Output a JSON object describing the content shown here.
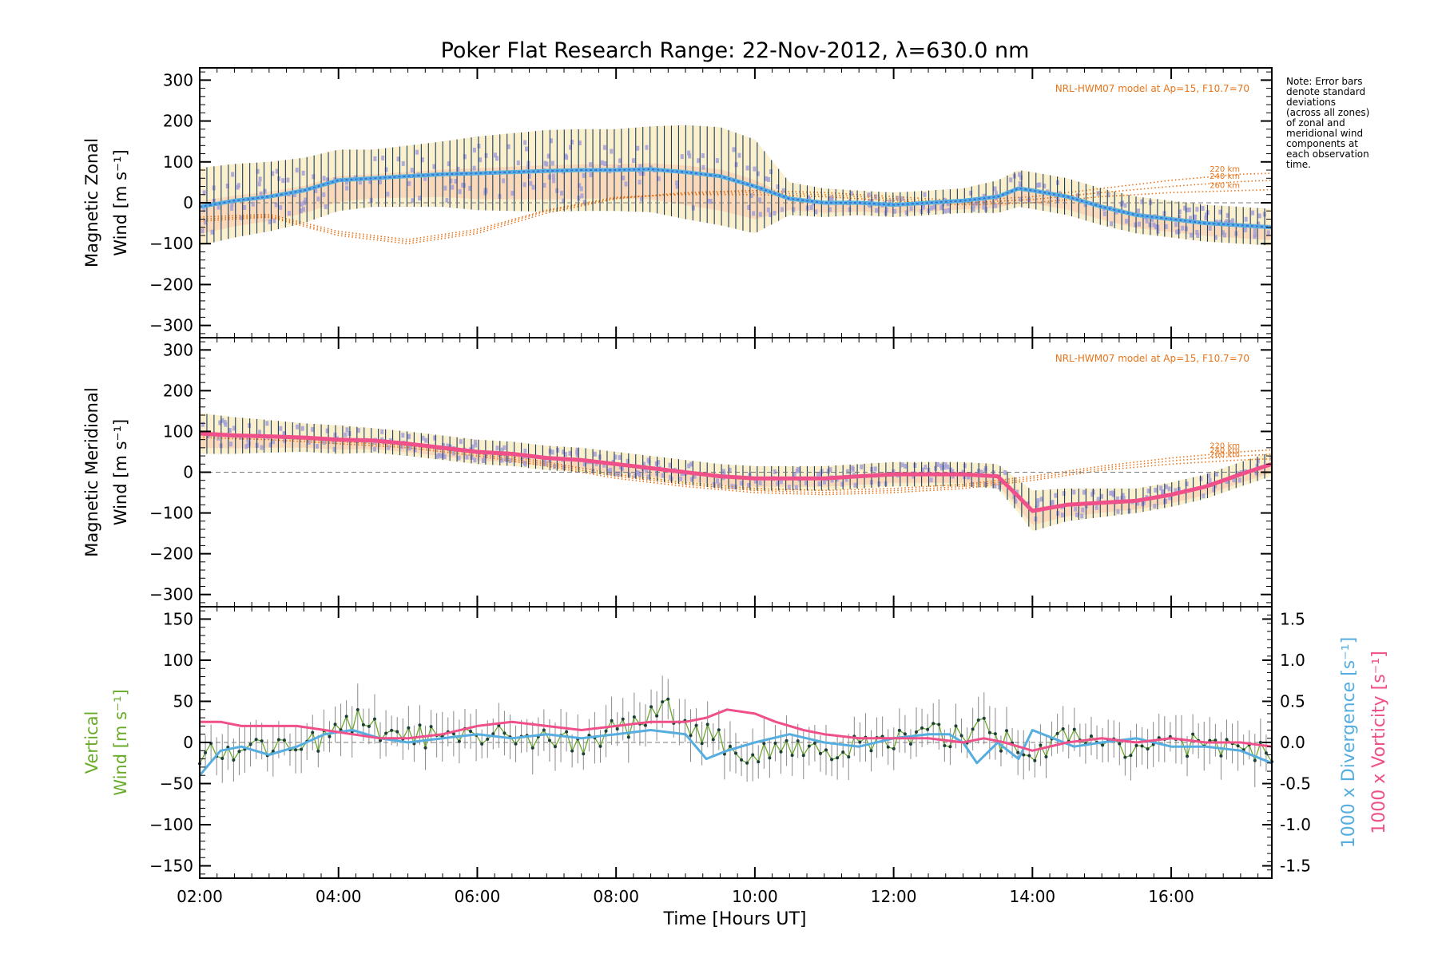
{
  "figure": {
    "title": "Poker Flat Research Range: 22-Nov-2012, λ=630.0 nm",
    "xlabel": "Time [Hours UT]",
    "note_lines": [
      "Note: Error bars",
      "denote standard",
      "deviations",
      "(across all zones)",
      "of zonal and",
      "meridional wind",
      "components at",
      "each observation",
      "time."
    ]
  },
  "colors": {
    "zonal": "#3b6fd8",
    "zonal_light": "#56b0e0",
    "meridional": "#f0508a",
    "vertical": "#6aaa2a",
    "divergence": "#56aee0",
    "vorticity": "#f0508a",
    "model": "#e8741a",
    "scatter": "#a6a0d8",
    "spread_a": "#f7c6a8",
    "spread_b": "#f6e4a6",
    "errbar": "#1d3d5c",
    "vert_err": "#8a8a8a",
    "ref_line": "#7a7a7a"
  },
  "chart_data": [
    {
      "type": "line",
      "ylabel": [
        "Magnetic Zonal",
        "Wind [m s⁻¹]"
      ],
      "ylim": [
        -330,
        330
      ],
      "yticks": [
        -300,
        -200,
        -100,
        0,
        100,
        200,
        300
      ],
      "xlim": [
        2,
        17.45
      ],
      "xticks": [
        "02:00",
        "04:00",
        "06:00",
        "08:00",
        "10:00",
        "12:00",
        "14:00",
        "16:00"
      ],
      "xtick_values": [
        2,
        4,
        6,
        8,
        10,
        12,
        14,
        16
      ],
      "model_annotation": "NRL-HWM07 model at Ap=15, F10.7=70",
      "model_labels": [
        "220 km",
        "240 km",
        "260 km"
      ],
      "series": [
        {
          "x": [
            2.0,
            2.5,
            3.0,
            3.5,
            4.0,
            4.5,
            5.0,
            5.5,
            6.0,
            6.5,
            7.0,
            7.5,
            8.0,
            8.5,
            9.0,
            9.5,
            10.0,
            10.5,
            11.0,
            11.5,
            12.0,
            12.5,
            13.0,
            13.5,
            13.8,
            14.0,
            14.5,
            15.0,
            15.5,
            16.0,
            16.5,
            17.0,
            17.45
          ],
          "y": [
            -10,
            5,
            15,
            30,
            55,
            60,
            65,
            70,
            72,
            75,
            78,
            80,
            80,
            82,
            75,
            65,
            40,
            10,
            0,
            0,
            -5,
            0,
            5,
            15,
            35,
            30,
            15,
            -10,
            -30,
            -40,
            -50,
            -55,
            -60
          ],
          "spread": [
            95,
            90,
            85,
            80,
            75,
            70,
            75,
            80,
            90,
            95,
            100,
            100,
            100,
            105,
            115,
            120,
            115,
            40,
            35,
            30,
            30,
            30,
            30,
            40,
            45,
            45,
            45,
            45,
            45,
            45,
            45,
            45,
            45
          ]
        }
      ],
      "model_curves": [
        {
          "name": "220 km",
          "x": [
            2,
            3,
            4,
            5,
            6,
            7,
            8,
            9,
            10,
            11,
            12,
            13,
            14,
            15,
            16,
            17,
            17.45
          ],
          "y": [
            -45,
            -35,
            -80,
            -100,
            -75,
            -25,
            10,
            25,
            30,
            25,
            15,
            5,
            15,
            35,
            55,
            70,
            72
          ]
        },
        {
          "name": "240 km",
          "x": [
            2,
            3,
            4,
            5,
            6,
            7,
            8,
            9,
            10,
            11,
            12,
            13,
            14,
            15,
            16,
            17,
            17.45
          ],
          "y": [
            -40,
            -32,
            -75,
            -95,
            -70,
            -20,
            12,
            22,
            25,
            20,
            10,
            0,
            8,
            25,
            40,
            52,
            55
          ]
        },
        {
          "name": "260 km",
          "x": [
            2,
            3,
            4,
            5,
            6,
            7,
            8,
            9,
            10,
            11,
            12,
            13,
            14,
            15,
            16,
            17,
            17.45
          ],
          "y": [
            -35,
            -28,
            -70,
            -90,
            -65,
            -18,
            14,
            20,
            20,
            15,
            5,
            -5,
            0,
            15,
            25,
            30,
            32
          ]
        }
      ]
    },
    {
      "type": "line",
      "ylabel": [
        "Magnetic Meridional",
        "Wind [m s⁻¹]"
      ],
      "ylim": [
        -330,
        330
      ],
      "yticks": [
        -300,
        -200,
        -100,
        0,
        100,
        200,
        300
      ],
      "xlim": [
        2,
        17.45
      ],
      "model_annotation": "NRL-HWM07 model at Ap=15, F10.7=70",
      "model_labels": [
        "220 km",
        "240 km",
        "260 km"
      ],
      "series": [
        {
          "x": [
            2.0,
            2.5,
            3.0,
            3.5,
            4.0,
            4.5,
            5.0,
            5.5,
            6.0,
            6.5,
            7.0,
            7.5,
            8.0,
            8.5,
            9.0,
            9.5,
            10.0,
            10.5,
            11.0,
            11.5,
            12.0,
            12.5,
            13.0,
            13.5,
            13.8,
            14.0,
            14.5,
            15.0,
            15.5,
            16.0,
            16.5,
            17.0,
            17.45
          ],
          "y": [
            95,
            90,
            88,
            85,
            80,
            78,
            70,
            60,
            50,
            45,
            35,
            30,
            20,
            10,
            0,
            -10,
            -15,
            -15,
            -15,
            -10,
            -5,
            -5,
            -5,
            -10,
            -60,
            -95,
            -80,
            -75,
            -70,
            -55,
            -35,
            -5,
            20
          ],
          "spread": [
            50,
            45,
            40,
            35,
            35,
            30,
            30,
            30,
            30,
            30,
            30,
            30,
            30,
            30,
            30,
            30,
            30,
            30,
            30,
            30,
            30,
            30,
            30,
            30,
            40,
            50,
            40,
            35,
            30,
            30,
            30,
            30,
            30
          ]
        }
      ],
      "model_curves": [
        {
          "name": "220 km",
          "x": [
            2,
            3,
            4,
            5,
            6,
            7,
            8,
            9,
            10,
            11,
            12,
            13,
            14,
            15,
            16,
            17,
            17.45
          ],
          "y": [
            95,
            90,
            80,
            70,
            50,
            25,
            -5,
            -25,
            -40,
            -45,
            -40,
            -30,
            -10,
            15,
            35,
            50,
            55
          ]
        },
        {
          "name": "240 km",
          "x": [
            2,
            3,
            4,
            5,
            6,
            7,
            8,
            9,
            10,
            11,
            12,
            13,
            14,
            15,
            16,
            17,
            17.45
          ],
          "y": [
            90,
            85,
            75,
            65,
            45,
            20,
            -10,
            -30,
            -45,
            -50,
            -45,
            -35,
            -15,
            10,
            28,
            40,
            44
          ]
        },
        {
          "name": "260 km",
          "x": [
            2,
            3,
            4,
            5,
            6,
            7,
            8,
            9,
            10,
            11,
            12,
            13,
            14,
            15,
            16,
            17,
            17.45
          ],
          "y": [
            85,
            80,
            70,
            60,
            40,
            15,
            -15,
            -35,
            -50,
            -55,
            -50,
            -40,
            -20,
            5,
            20,
            30,
            33
          ]
        }
      ]
    },
    {
      "type": "line",
      "ylabel": [
        "Vertical",
        "Wind [m s⁻¹]"
      ],
      "ylim": [
        -165,
        165
      ],
      "yticks": [
        -150,
        -100,
        -50,
        0,
        50,
        100,
        150
      ],
      "xlim": [
        2,
        17.45
      ],
      "xticks": [
        "02:00",
        "04:00",
        "06:00",
        "08:00",
        "10:00",
        "12:00",
        "14:00",
        "16:00"
      ],
      "xtick_values": [
        2,
        4,
        6,
        8,
        10,
        12,
        14,
        16
      ],
      "y2label": "1000 x Divergence [s⁻¹]",
      "y3label": "1000 x Vorticity [s⁻¹]",
      "y2lim": [
        -1.65,
        1.65
      ],
      "y2ticks": [
        "-1.5",
        "-1.0",
        "-0.5",
        "0.0",
        "0.5",
        "1.0",
        "1.5"
      ],
      "y2tick_values": [
        -1.5,
        -1.0,
        -0.5,
        0.0,
        0.5,
        1.0,
        1.5
      ],
      "series": [
        {
          "name": "vertical",
          "x": [
            2.0,
            2.5,
            3.0,
            3.5,
            4.0,
            4.3,
            4.5,
            5.0,
            5.5,
            6.0,
            6.5,
            7.0,
            7.5,
            8.0,
            8.5,
            8.7,
            9.0,
            9.5,
            10.0,
            10.5,
            11.0,
            11.5,
            12.0,
            12.5,
            13.0,
            13.2,
            13.5,
            14.0,
            14.5,
            15.0,
            15.5,
            16.0,
            16.5,
            17.0,
            17.45
          ],
          "y": [
            -15,
            -10,
            -5,
            0,
            10,
            30,
            15,
            10,
            5,
            0,
            10,
            5,
            0,
            15,
            30,
            45,
            25,
            0,
            -20,
            0,
            -10,
            -5,
            0,
            10,
            5,
            35,
            5,
            -10,
            5,
            0,
            -5,
            5,
            -10,
            -5,
            -15
          ],
          "spread": [
            25,
            25,
            25,
            25,
            25,
            25,
            25,
            25,
            25,
            25,
            25,
            25,
            25,
            25,
            25,
            25,
            25,
            25,
            25,
            25,
            25,
            25,
            25,
            25,
            25,
            25,
            25,
            25,
            25,
            25,
            25,
            25,
            25,
            25,
            25
          ]
        },
        {
          "name": "divergence",
          "x": [
            2.0,
            2.3,
            2.6,
            3.0,
            3.4,
            3.8,
            4.2,
            4.6,
            5.0,
            5.5,
            6.0,
            6.5,
            7.0,
            7.5,
            8.0,
            8.5,
            9.0,
            9.3,
            9.6,
            10.0,
            10.5,
            11.0,
            11.5,
            12.0,
            12.5,
            12.8,
            13.0,
            13.2,
            13.5,
            13.8,
            14.0,
            14.3,
            14.6,
            15.0,
            15.5,
            16.0,
            16.5,
            17.0,
            17.45
          ],
          "y": [
            -0.4,
            -0.1,
            -0.05,
            -0.15,
            -0.05,
            0.1,
            0.15,
            0.05,
            0.0,
            0.05,
            0.1,
            0.05,
            0.1,
            0.05,
            0.1,
            0.15,
            0.1,
            -0.2,
            -0.1,
            0.0,
            0.1,
            0.0,
            -0.05,
            0.05,
            0.1,
            0.1,
            0.0,
            -0.25,
            0.0,
            -0.2,
            0.15,
            0.05,
            -0.05,
            0.0,
            0.05,
            -0.05,
            -0.05,
            -0.1,
            -0.25
          ]
        },
        {
          "name": "vorticity",
          "x": [
            2.0,
            2.3,
            2.6,
            3.0,
            3.4,
            3.8,
            4.2,
            4.6,
            5.0,
            5.5,
            6.0,
            6.5,
            7.0,
            7.5,
            8.0,
            8.5,
            9.0,
            9.3,
            9.6,
            10.0,
            10.3,
            10.7,
            11.0,
            11.5,
            12.0,
            12.5,
            13.0,
            13.3,
            13.6,
            14.0,
            14.5,
            15.0,
            15.5,
            16.0,
            16.5,
            17.0,
            17.45
          ],
          "y": [
            0.25,
            0.25,
            0.2,
            0.2,
            0.2,
            0.15,
            0.1,
            0.05,
            0.05,
            0.1,
            0.2,
            0.25,
            0.2,
            0.15,
            0.2,
            0.25,
            0.25,
            0.3,
            0.4,
            0.35,
            0.25,
            0.15,
            0.1,
            0.05,
            0.05,
            0.05,
            0.0,
            0.05,
            0.0,
            -0.1,
            0.0,
            0.05,
            0.0,
            0.05,
            0.0,
            0.0,
            -0.05
          ]
        }
      ]
    }
  ]
}
